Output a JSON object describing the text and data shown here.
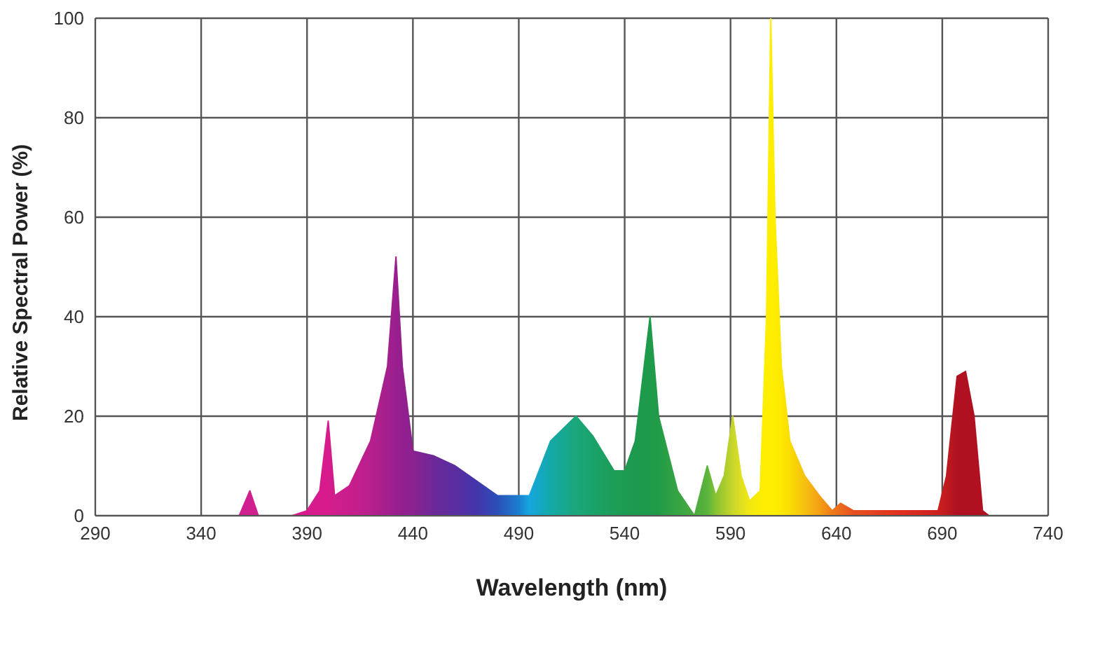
{
  "chart_data": {
    "type": "area",
    "xlabel": "Wavelength (nm)",
    "ylabel": "Relative Spectral Power (%)",
    "xlim": [
      290,
      740
    ],
    "xticks": [
      290,
      340,
      390,
      440,
      490,
      540,
      590,
      640,
      690,
      740
    ],
    "ylim": [
      0,
      100
    ],
    "yticks": [
      0,
      20,
      40,
      60,
      80,
      100
    ],
    "grid": true,
    "legend": false,
    "series": [
      {
        "x": [
          350,
          358,
          363,
          367,
          383,
          390,
          396,
          400,
          403,
          410,
          420,
          428,
          432,
          435,
          440,
          450,
          460,
          470,
          480,
          490,
          495,
          505,
          517,
          525,
          535,
          540,
          545,
          552,
          556,
          565,
          573,
          576,
          579,
          583,
          587,
          591,
          595,
          599,
          604,
          607,
          609,
          611,
          614,
          618,
          625,
          632,
          638,
          642,
          648,
          670,
          688,
          692,
          697,
          701,
          705,
          709,
          712
        ],
        "values": [
          0,
          0,
          5,
          0,
          0,
          1,
          5,
          19,
          4,
          6,
          15,
          30,
          52,
          30,
          13,
          12,
          10,
          7,
          4,
          4,
          4,
          15,
          20,
          16,
          9,
          9,
          15,
          40,
          20,
          5,
          0,
          5,
          10,
          4,
          8,
          20,
          8,
          3,
          5,
          40,
          100,
          60,
          30,
          15,
          8,
          4,
          1,
          2.5,
          1,
          1,
          1,
          8,
          28,
          29,
          20,
          1,
          0
        ],
        "colors": [
          "#d0208f",
          "#d0208f",
          "#d0208f",
          "#d0208f",
          "#d81b8c",
          "#d81b8c",
          "#d81b8c",
          "#d81b8c",
          "#cf1d8c",
          "#c81e8c",
          "#b81f8d",
          "#a31f8e",
          "#9a1f8e",
          "#941f8f",
          "#8a2290",
          "#6c2898",
          "#5a2ea0",
          "#4434ab",
          "#2b4fb8",
          "#1b7fd0",
          "#15a6df",
          "#14a9a8",
          "#1aa77a",
          "#1aa26a",
          "#1c9d58",
          "#1d9b52",
          "#1e9a4e",
          "#1e9a4a",
          "#229b48",
          "#36a443",
          "#4aab3f",
          "#52ae3d",
          "#5ab43c",
          "#86c234",
          "#a8cc2e",
          "#c8d62a",
          "#e0e020",
          "#f2e812",
          "#fced05",
          "#ffee00",
          "#ffee00",
          "#ffee00",
          "#fde800",
          "#fbdc04",
          "#f6c010",
          "#f3a014",
          "#f07a1a",
          "#ec6a1c",
          "#e85020",
          "#e03020",
          "#cc2020",
          "#c01a20",
          "#b01020",
          "#b01020",
          "#b01020",
          "#b01020",
          "#b01020"
        ]
      }
    ]
  }
}
